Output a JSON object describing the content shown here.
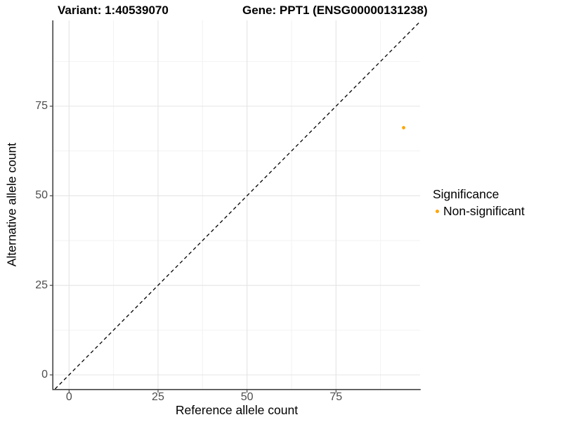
{
  "title": {
    "variant": "Variant: 1:40539070",
    "gene": "Gene: PPT1 (ENSG00000131238)"
  },
  "x_axis": {
    "label": "Reference allele count",
    "ticks": [
      0,
      25,
      50,
      75
    ],
    "minor_ticks": [
      12.5,
      37.5,
      62.5,
      87.5
    ]
  },
  "y_axis": {
    "label": "Alternative allele count",
    "ticks": [
      0,
      25,
      50,
      75
    ],
    "minor_ticks": [
      12.5,
      37.5,
      62.5,
      87.5
    ]
  },
  "legend": {
    "title": "Significance",
    "items": [
      {
        "label": "Non-significant",
        "color": "#FFA500"
      }
    ]
  },
  "colors": {
    "point": "#FFA500",
    "grid_major": "#E4E4E4",
    "grid_minor": "#F2F2F2",
    "axis_line": "#454545",
    "tick_mark": "#333333",
    "tick_label": "#4D4D4D",
    "reference_line": "#000000"
  },
  "chart_data": {
    "type": "scatter",
    "title_left": "Variant: 1:40539070",
    "title_right": "Gene: PPT1 (ENSG00000131238)",
    "xlabel": "Reference allele count",
    "ylabel": "Alternative allele count",
    "xlim": [
      -4.7,
      98.7
    ],
    "ylim": [
      -4.7,
      98.7
    ],
    "x_ticks": [
      0,
      25,
      50,
      75
    ],
    "y_ticks": [
      0,
      25,
      50,
      75
    ],
    "grid": "major+minor",
    "legend_position": "right",
    "series": [
      {
        "name": "Non-significant",
        "color": "#FFA500",
        "points": [
          {
            "x": 94,
            "y": 69
          }
        ]
      }
    ],
    "reference_line": {
      "equation": "y = x",
      "style": "dashed",
      "color": "#000000"
    }
  }
}
